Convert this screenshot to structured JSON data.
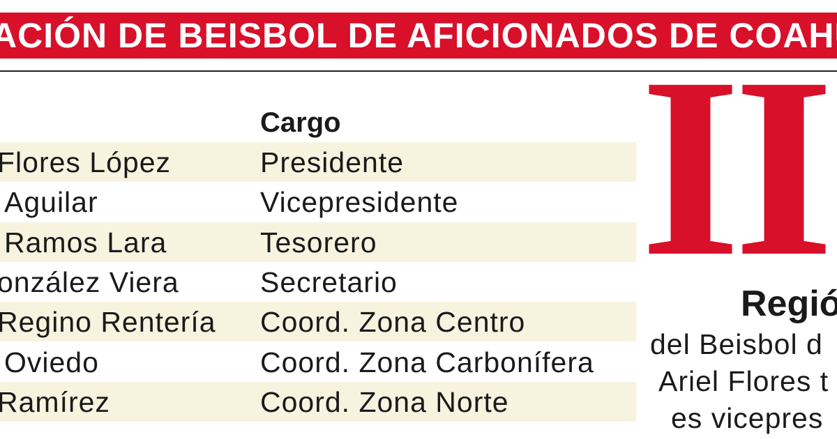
{
  "header": {
    "title": "ACIÓN DE BEISBOL DE AFICIONADOS DE COAHUILA"
  },
  "table": {
    "column_header": "Cargo",
    "rows": [
      [
        "Flores López",
        "Presidente"
      ],
      [
        "Aguilar",
        "Vicepresidente"
      ],
      [
        "Ramos Lara",
        "Tesorero"
      ],
      [
        "onzález Viera",
        "Secretario"
      ],
      [
        "Regino Rentería",
        "Coord. Zona Centro"
      ],
      [
        "Oviedo",
        "Coord. Zona Carbonífera"
      ],
      [
        "Ramírez",
        "Coord. Zona Norte"
      ]
    ]
  },
  "side": {
    "numeral": "II",
    "heading": "Regió",
    "lines": [
      "del Beisbol d",
      "Ariel Flores t",
      "es vicepres"
    ]
  }
}
